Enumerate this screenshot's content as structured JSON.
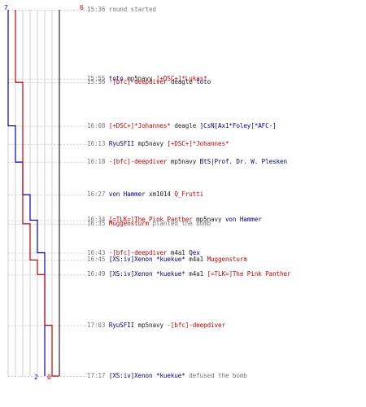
{
  "colors": {
    "blue": "#0000cc",
    "red": "#cc0000",
    "grid": "#cfcfcf",
    "axis": "#555555",
    "text_gray": "#777777",
    "text_blue": "#000080",
    "text_red": "#cc0000"
  },
  "chart_data": {
    "type": "line",
    "series": [
      {
        "color": "#0000cc",
        "values": [
          7,
          7,
          7,
          6,
          6,
          5,
          4,
          3,
          3,
          2,
          2,
          2,
          2,
          2
        ]
      },
      {
        "color": "#cc0000",
        "values": [
          6,
          6,
          5,
          5,
          5,
          5,
          5,
          5,
          4,
          4,
          3,
          2,
          1,
          0
        ]
      }
    ],
    "start_labels": {
      "blue": "7",
      "red": "6"
    },
    "end_labels": {
      "blue": "2",
      "red": "0"
    }
  },
  "events": [
    {
      "time": "15:36",
      "parts": [
        {
          "text": "round started",
          "c": "g"
        }
      ]
    },
    {
      "time": "15:55",
      "parts": [
        {
          "text": "toto",
          "c": "b"
        },
        {
          "text": " mp5navy ",
          "c": "w"
        },
        {
          "text": "[+DSC+]*Lukas*",
          "c": "r"
        }
      ]
    },
    {
      "time": "15:56",
      "parts": [
        {
          "text": "-[bfc]-deepdiver",
          "c": "r"
        },
        {
          "text": " deagle ",
          "c": "w"
        },
        {
          "text": "toto",
          "c": "b"
        }
      ]
    },
    {
      "time": "16:08",
      "parts": [
        {
          "text": "[+DSC+]*Johannes*",
          "c": "r"
        },
        {
          "text": " deagle ",
          "c": "w"
        },
        {
          "text": "]CsN[Ax1*Foley[*AFC-]",
          "c": "b"
        }
      ]
    },
    {
      "time": "16:13",
      "parts": [
        {
          "text": "RyuSFII",
          "c": "b"
        },
        {
          "text": " mp5navy ",
          "c": "w"
        },
        {
          "text": "[+DSC+]*Johannes*",
          "c": "r"
        }
      ]
    },
    {
      "time": "16:18",
      "parts": [
        {
          "text": "-[bfc]-deepdiver",
          "c": "r"
        },
        {
          "text": " mp5navy ",
          "c": "w"
        },
        {
          "text": "BtS|Prof. Dr. W. Plesken",
          "c": "b"
        }
      ]
    },
    {
      "time": "16:27",
      "parts": [
        {
          "text": "von Hammer",
          "c": "b"
        },
        {
          "text": " xm1014 ",
          "c": "w"
        },
        {
          "text": "Q_Frutti",
          "c": "r"
        }
      ]
    },
    {
      "time": "16:34",
      "parts": [
        {
          "text": "[=TLK=]The Pink Panther",
          "c": "r"
        },
        {
          "text": " mp5navy ",
          "c": "w"
        },
        {
          "text": "von Hammer",
          "c": "b"
        }
      ]
    },
    {
      "time": "16:35",
      "parts": [
        {
          "text": "Muggensturm",
          "c": "r"
        },
        {
          "text": " planted the bomb",
          "c": "g"
        }
      ]
    },
    {
      "time": "16:43",
      "parts": [
        {
          "text": "-[bfc]-deepdiver",
          "c": "r"
        },
        {
          "text": " m4a1 ",
          "c": "w"
        },
        {
          "text": "Qex",
          "c": "b"
        }
      ]
    },
    {
      "time": "16:45",
      "parts": [
        {
          "text": "[XS:iv]Xenon *kuekue*",
          "c": "b"
        },
        {
          "text": " m4a1 ",
          "c": "w"
        },
        {
          "text": "Muggensturm",
          "c": "r"
        }
      ]
    },
    {
      "time": "16:49",
      "parts": [
        {
          "text": "[XS:iv]Xenon *kuekue*",
          "c": "b"
        },
        {
          "text": " m4a1 ",
          "c": "w"
        },
        {
          "text": "[=TLK=]The Pink Panther",
          "c": "r"
        }
      ]
    },
    {
      "time": "17:03",
      "parts": [
        {
          "text": "RyuSFII",
          "c": "b"
        },
        {
          "text": " mp5navy ",
          "c": "w"
        },
        {
          "text": "-[bfc]-deepdiver",
          "c": "r"
        }
      ]
    },
    {
      "time": "17:17",
      "parts": [
        {
          "text": "[XS:iv]Xenon *kuekue*",
          "c": "b"
        },
        {
          "text": " defused the bomb",
          "c": "g"
        }
      ]
    }
  ]
}
